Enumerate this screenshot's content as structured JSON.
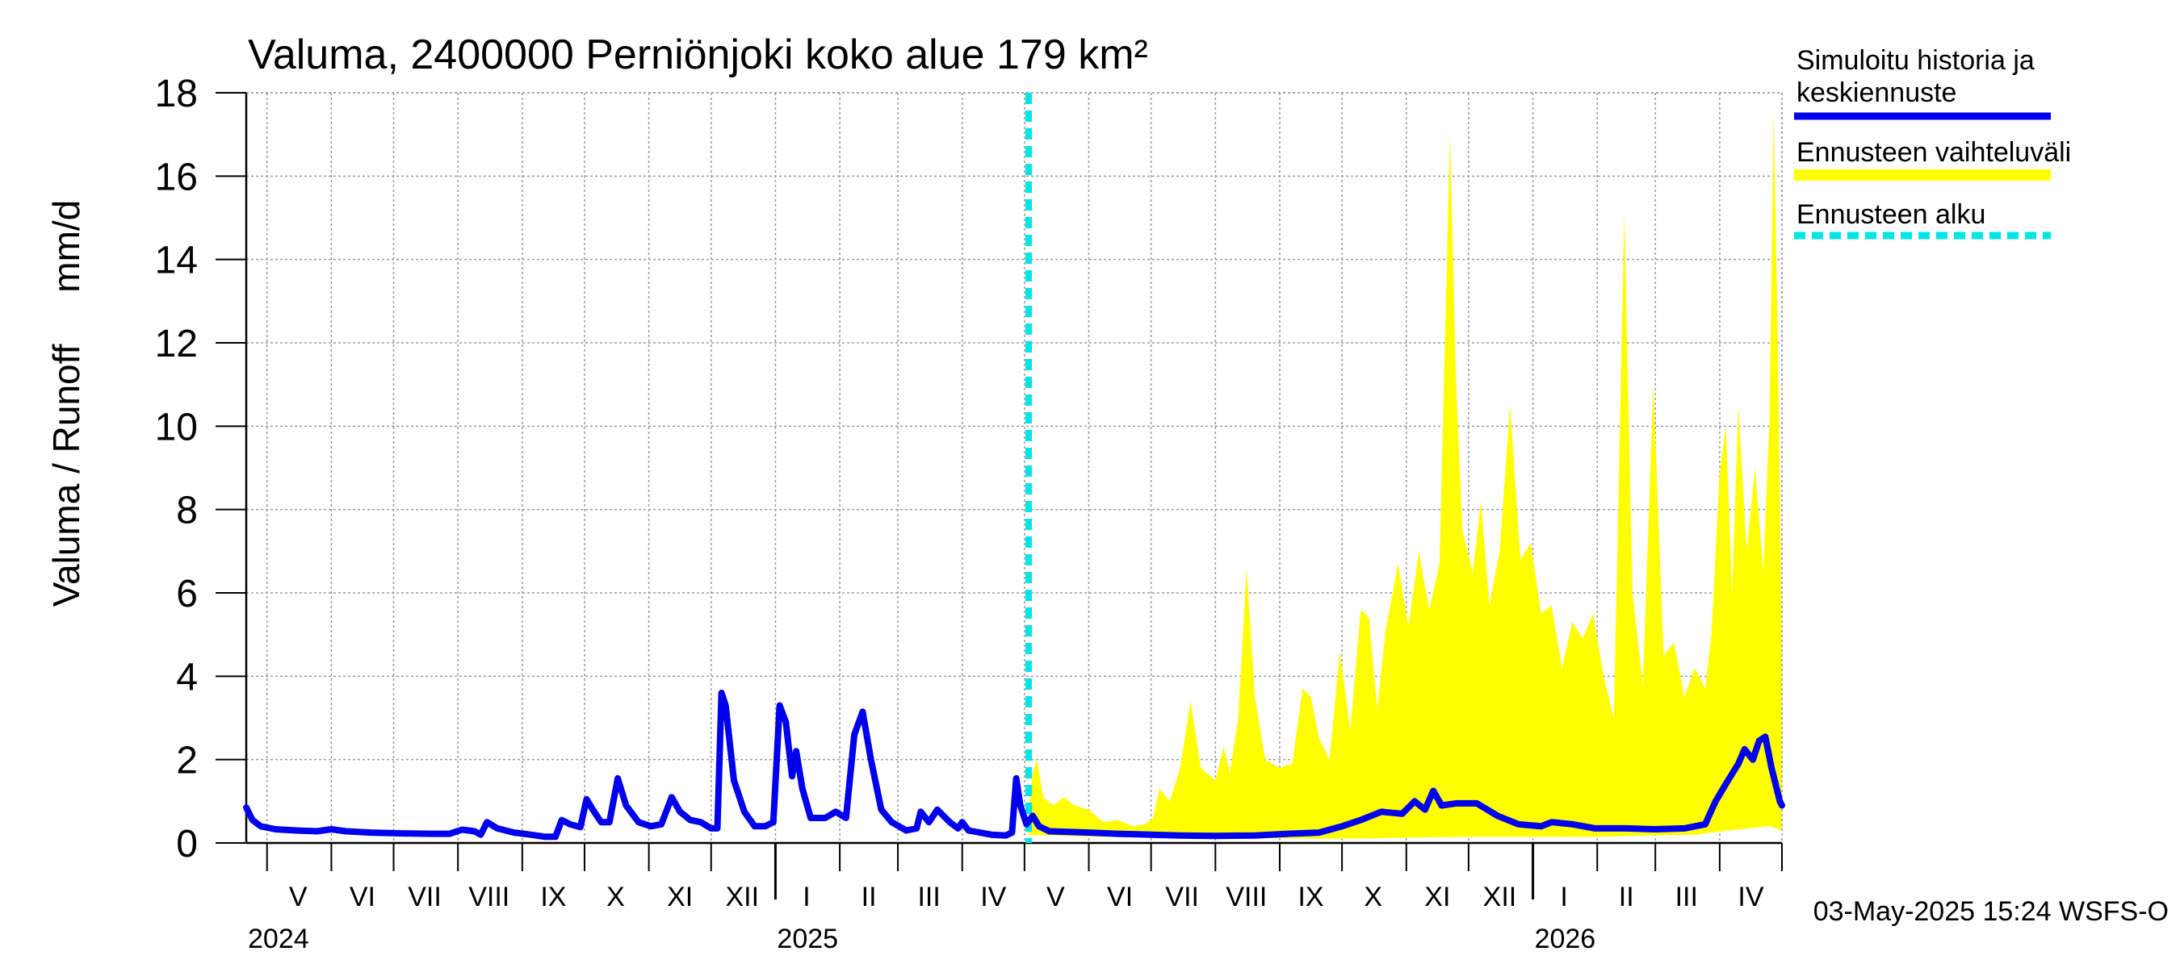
{
  "chart_data": {
    "type": "area",
    "title": "Valuma, 2400000 Perniönjoki koko alue 179 km²",
    "ylabel": "Valuma / Runoff     mm/d",
    "xlabel": "",
    "ylim": [
      0,
      18
    ],
    "yticks": [
      "0",
      "2",
      "4",
      "6",
      "8",
      "10",
      "12",
      "14",
      "16",
      "18"
    ],
    "grid": true,
    "legend_position": "right",
    "x_start": "2024-04-21",
    "x_end": "2026-05-01",
    "forecast_start": "2025-05-03",
    "month_labels": [
      {
        "label": "V",
        "date": "2024-05-16"
      },
      {
        "label": "VI",
        "date": "2024-06-16"
      },
      {
        "label": "VII",
        "date": "2024-07-16"
      },
      {
        "label": "VIII",
        "date": "2024-08-16"
      },
      {
        "label": "IX",
        "date": "2024-09-16"
      },
      {
        "label": "X",
        "date": "2024-10-16"
      },
      {
        "label": "XI",
        "date": "2024-11-16"
      },
      {
        "label": "XII",
        "date": "2024-12-16"
      },
      {
        "label": "I",
        "date": "2025-01-16"
      },
      {
        "label": "II",
        "date": "2025-02-15"
      },
      {
        "label": "III",
        "date": "2025-03-16"
      },
      {
        "label": "IV",
        "date": "2025-04-16"
      },
      {
        "label": "V",
        "date": "2025-05-16"
      },
      {
        "label": "VI",
        "date": "2025-06-16"
      },
      {
        "label": "VII",
        "date": "2025-07-16"
      },
      {
        "label": "VIII",
        "date": "2025-08-16"
      },
      {
        "label": "IX",
        "date": "2025-09-16"
      },
      {
        "label": "X",
        "date": "2025-10-16"
      },
      {
        "label": "XI",
        "date": "2025-11-16"
      },
      {
        "label": "XII",
        "date": "2025-12-16"
      },
      {
        "label": "I",
        "date": "2026-01-16"
      },
      {
        "label": "II",
        "date": "2026-02-15"
      },
      {
        "label": "III",
        "date": "2026-03-16"
      },
      {
        "label": "IV",
        "date": "2026-04-16"
      }
    ],
    "year_labels": [
      {
        "label": "2024",
        "date": "2024-04-21"
      },
      {
        "label": "2025",
        "date": "2025-01-01"
      },
      {
        "label": "2026",
        "date": "2026-01-01"
      }
    ],
    "series": [
      {
        "name": "Simuloitu historia ja keskiennuste",
        "color": "#0000ee",
        "points": [
          [
            "2024-04-21",
            0.85
          ],
          [
            "2024-04-24",
            0.55
          ],
          [
            "2024-04-28",
            0.4
          ],
          [
            "2024-05-05",
            0.33
          ],
          [
            "2024-05-15",
            0.3
          ],
          [
            "2024-05-25",
            0.28
          ],
          [
            "2024-06-01",
            0.33
          ],
          [
            "2024-06-08",
            0.28
          ],
          [
            "2024-06-20",
            0.25
          ],
          [
            "2024-07-05",
            0.23
          ],
          [
            "2024-07-20",
            0.22
          ],
          [
            "2024-07-28",
            0.22
          ],
          [
            "2024-08-03",
            0.32
          ],
          [
            "2024-08-09",
            0.28
          ],
          [
            "2024-08-12",
            0.2
          ],
          [
            "2024-08-15",
            0.5
          ],
          [
            "2024-08-20",
            0.35
          ],
          [
            "2024-08-28",
            0.25
          ],
          [
            "2024-09-05",
            0.2
          ],
          [
            "2024-09-12",
            0.15
          ],
          [
            "2024-09-17",
            0.15
          ],
          [
            "2024-09-20",
            0.55
          ],
          [
            "2024-09-24",
            0.45
          ],
          [
            "2024-09-29",
            0.38
          ],
          [
            "2024-10-02",
            1.05
          ],
          [
            "2024-10-05",
            0.8
          ],
          [
            "2024-10-09",
            0.5
          ],
          [
            "2024-10-13",
            0.5
          ],
          [
            "2024-10-17",
            1.55
          ],
          [
            "2024-10-21",
            0.9
          ],
          [
            "2024-10-27",
            0.5
          ],
          [
            "2024-11-02",
            0.4
          ],
          [
            "2024-11-07",
            0.45
          ],
          [
            "2024-11-12",
            1.1
          ],
          [
            "2024-11-16",
            0.75
          ],
          [
            "2024-11-21",
            0.55
          ],
          [
            "2024-11-26",
            0.5
          ],
          [
            "2024-12-01",
            0.35
          ],
          [
            "2024-12-04",
            0.35
          ],
          [
            "2024-12-06",
            3.6
          ],
          [
            "2024-12-08",
            3.3
          ],
          [
            "2024-12-12",
            1.5
          ],
          [
            "2024-12-17",
            0.75
          ],
          [
            "2024-12-22",
            0.4
          ],
          [
            "2024-12-27",
            0.4
          ],
          [
            "2024-12-31",
            0.5
          ],
          [
            "2025-01-03",
            3.3
          ],
          [
            "2025-01-06",
            2.9
          ],
          [
            "2025-01-09",
            1.6
          ],
          [
            "2025-01-11",
            2.2
          ],
          [
            "2025-01-14",
            1.3
          ],
          [
            "2025-01-18",
            0.6
          ],
          [
            "2025-01-25",
            0.6
          ],
          [
            "2025-01-30",
            0.75
          ],
          [
            "2025-02-04",
            0.6
          ],
          [
            "2025-02-08",
            2.6
          ],
          [
            "2025-02-12",
            3.15
          ],
          [
            "2025-02-16",
            2.0
          ],
          [
            "2025-02-21",
            0.8
          ],
          [
            "2025-02-26",
            0.5
          ],
          [
            "2025-03-05",
            0.3
          ],
          [
            "2025-03-10",
            0.35
          ],
          [
            "2025-03-12",
            0.75
          ],
          [
            "2025-03-16",
            0.5
          ],
          [
            "2025-03-20",
            0.8
          ],
          [
            "2025-03-26",
            0.5
          ],
          [
            "2025-03-30",
            0.35
          ],
          [
            "2025-04-01",
            0.5
          ],
          [
            "2025-04-04",
            0.3
          ],
          [
            "2025-04-15",
            0.2
          ],
          [
            "2025-04-22",
            0.18
          ],
          [
            "2025-04-25",
            0.25
          ],
          [
            "2025-04-27",
            1.55
          ],
          [
            "2025-04-29",
            0.9
          ],
          [
            "2025-05-02",
            0.45
          ],
          [
            "2025-05-05",
            0.65
          ],
          [
            "2025-05-08",
            0.4
          ],
          [
            "2025-05-13",
            0.28
          ],
          [
            "2025-06-01",
            0.25
          ],
          [
            "2025-06-15",
            0.22
          ],
          [
            "2025-07-01",
            0.2
          ],
          [
            "2025-07-15",
            0.18
          ],
          [
            "2025-08-01",
            0.17
          ],
          [
            "2025-08-20",
            0.18
          ],
          [
            "2025-09-05",
            0.22
          ],
          [
            "2025-09-20",
            0.25
          ],
          [
            "2025-10-01",
            0.4
          ],
          [
            "2025-10-10",
            0.55
          ],
          [
            "2025-10-20",
            0.75
          ],
          [
            "2025-10-30",
            0.7
          ],
          [
            "2025-11-05",
            1.0
          ],
          [
            "2025-11-10",
            0.8
          ],
          [
            "2025-11-14",
            1.25
          ],
          [
            "2025-11-18",
            0.9
          ],
          [
            "2025-11-25",
            0.95
          ],
          [
            "2025-12-05",
            0.95
          ],
          [
            "2025-12-15",
            0.65
          ],
          [
            "2025-12-25",
            0.45
          ],
          [
            "2026-01-05",
            0.4
          ],
          [
            "2026-01-10",
            0.5
          ],
          [
            "2026-01-20",
            0.45
          ],
          [
            "2026-01-31",
            0.35
          ],
          [
            "2026-02-15",
            0.35
          ],
          [
            "2026-03-01",
            0.33
          ],
          [
            "2026-03-15",
            0.35
          ],
          [
            "2026-03-25",
            0.45
          ],
          [
            "2026-03-30",
            1.0
          ],
          [
            "2026-04-05",
            1.5
          ],
          [
            "2026-04-10",
            1.9
          ],
          [
            "2026-04-13",
            2.25
          ],
          [
            "2026-04-17",
            2.0
          ],
          [
            "2026-04-20",
            2.45
          ],
          [
            "2026-04-23",
            2.55
          ],
          [
            "2026-04-26",
            1.8
          ],
          [
            "2026-04-30",
            1.0
          ],
          [
            "2026-05-01",
            0.9
          ]
        ]
      },
      {
        "name": "Ennusteen vaihteluväli",
        "color": "#ffff00",
        "upper": [
          [
            "2025-05-03",
            0.8
          ],
          [
            "2025-05-05",
            1.7
          ],
          [
            "2025-05-07",
            2.0
          ],
          [
            "2025-05-10",
            1.1
          ],
          [
            "2025-05-15",
            0.9
          ],
          [
            "2025-05-20",
            1.1
          ],
          [
            "2025-05-25",
            0.9
          ],
          [
            "2025-06-01",
            0.8
          ],
          [
            "2025-06-08",
            0.5
          ],
          [
            "2025-06-15",
            0.55
          ],
          [
            "2025-06-22",
            0.4
          ],
          [
            "2025-06-28",
            0.45
          ],
          [
            "2025-07-02",
            0.6
          ],
          [
            "2025-07-05",
            1.3
          ],
          [
            "2025-07-10",
            1.0
          ],
          [
            "2025-07-15",
            1.8
          ],
          [
            "2025-07-20",
            3.4
          ],
          [
            "2025-07-25",
            1.8
          ],
          [
            "2025-08-01",
            1.5
          ],
          [
            "2025-08-05",
            2.3
          ],
          [
            "2025-08-08",
            1.7
          ],
          [
            "2025-08-12",
            3.0
          ],
          [
            "2025-08-16",
            6.6
          ],
          [
            "2025-08-20",
            3.5
          ],
          [
            "2025-08-25",
            2.0
          ],
          [
            "2025-09-01",
            1.8
          ],
          [
            "2025-09-07",
            1.9
          ],
          [
            "2025-09-12",
            3.7
          ],
          [
            "2025-09-16",
            3.5
          ],
          [
            "2025-09-20",
            2.5
          ],
          [
            "2025-09-25",
            2.0
          ],
          [
            "2025-09-30",
            4.6
          ],
          [
            "2025-10-05",
            2.7
          ],
          [
            "2025-10-10",
            5.6
          ],
          [
            "2025-10-14",
            5.4
          ],
          [
            "2025-10-18",
            3.2
          ],
          [
            "2025-10-22",
            5.1
          ],
          [
            "2025-10-28",
            6.7
          ],
          [
            "2025-11-02",
            5.2
          ],
          [
            "2025-11-07",
            7.0
          ],
          [
            "2025-11-12",
            5.6
          ],
          [
            "2025-11-17",
            6.7
          ],
          [
            "2025-11-22",
            17.0
          ],
          [
            "2025-11-25",
            11.0
          ],
          [
            "2025-11-28",
            7.5
          ],
          [
            "2025-12-03",
            6.5
          ],
          [
            "2025-12-07",
            8.2
          ],
          [
            "2025-12-11",
            5.7
          ],
          [
            "2025-12-16",
            7.0
          ],
          [
            "2025-12-21",
            10.5
          ],
          [
            "2025-12-26",
            6.8
          ],
          [
            "2025-12-31",
            7.2
          ],
          [
            "2026-01-05",
            5.5
          ],
          [
            "2026-01-10",
            5.7
          ],
          [
            "2026-01-15",
            4.2
          ],
          [
            "2026-01-20",
            5.3
          ],
          [
            "2026-01-25",
            4.9
          ],
          [
            "2026-01-30",
            5.5
          ],
          [
            "2026-02-04",
            4.0
          ],
          [
            "2026-02-09",
            3.0
          ],
          [
            "2026-02-14",
            15.1
          ],
          [
            "2026-02-18",
            6.0
          ],
          [
            "2026-02-23",
            3.8
          ],
          [
            "2026-02-28",
            11.0
          ],
          [
            "2026-03-05",
            4.5
          ],
          [
            "2026-03-10",
            4.8
          ],
          [
            "2026-03-15",
            3.5
          ],
          [
            "2026-03-20",
            4.2
          ],
          [
            "2026-03-25",
            3.7
          ],
          [
            "2026-03-28",
            5.0
          ],
          [
            "2026-04-01",
            8.9
          ],
          [
            "2026-04-04",
            10.0
          ],
          [
            "2026-04-07",
            6.0
          ],
          [
            "2026-04-10",
            10.5
          ],
          [
            "2026-04-14",
            7.0
          ],
          [
            "2026-04-18",
            9.0
          ],
          [
            "2026-04-22",
            6.5
          ],
          [
            "2026-04-25",
            10.2
          ],
          [
            "2026-04-27",
            17.5
          ],
          [
            "2026-04-29",
            12.0
          ],
          [
            "2026-05-01",
            4.5
          ]
        ],
        "lower": [
          [
            "2025-05-03",
            0.2
          ],
          [
            "2025-06-01",
            0.15
          ],
          [
            "2025-08-01",
            0.12
          ],
          [
            "2025-10-01",
            0.1
          ],
          [
            "2025-12-01",
            0.15
          ],
          [
            "2026-02-01",
            0.15
          ],
          [
            "2026-03-20",
            0.2
          ],
          [
            "2026-04-05",
            0.3
          ],
          [
            "2026-04-15",
            0.35
          ],
          [
            "2026-04-25",
            0.4
          ],
          [
            "2026-05-01",
            0.3
          ]
        ]
      },
      {
        "name": "Ennusteen alku",
        "color": "#00e5e5"
      }
    ],
    "timestamp_text": "03-May-2025 15:24 WSFS-O"
  }
}
